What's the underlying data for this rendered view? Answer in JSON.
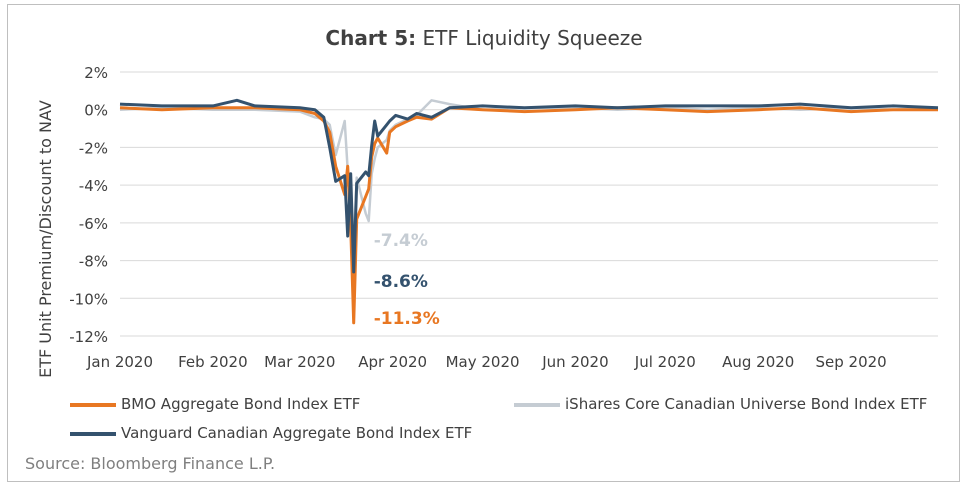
{
  "title": {
    "bold": "Chart 5:",
    "rest": "ETF Liquidity Squeeze"
  },
  "source": "Source: Bloomberg Finance L.P.",
  "colors": {
    "bmo": "#e87722",
    "ishares": "#c5ccd3",
    "vanguard": "#34526e",
    "grid": "#d9d9d9",
    "axis_text": "#404040"
  },
  "chart_data": {
    "type": "line",
    "title": "Chart 5: ETF Liquidity Squeeze",
    "ylabel": "ETF Unit Premium/Discount to NAV",
    "xlabel": "",
    "ylim": [
      -12,
      2
    ],
    "yticks": [
      "2%",
      "0%",
      "-2%",
      "-4%",
      "-6%",
      "-8%",
      "-10%",
      "-12%"
    ],
    "ytick_values": [
      2,
      0,
      -2,
      -4,
      -6,
      -8,
      -10,
      -12
    ],
    "xticks": [
      "Jan 2020",
      "Feb 2020",
      "Mar 2020",
      "Apr 2020",
      "May 2020",
      "Jun 2020",
      "Jul 2020",
      "Aug 2020",
      "Sep 2020"
    ],
    "xtick_dates": [
      "2020-01-01",
      "2020-02-01",
      "2020-03-01",
      "2020-04-01",
      "2020-05-01",
      "2020-06-01",
      "2020-07-01",
      "2020-08-01",
      "2020-09-01"
    ],
    "xlim": [
      "2020-01-01",
      "2020-09-30"
    ],
    "grid": true,
    "legend_position": "bottom",
    "series": [
      {
        "name": "BMO Aggregate Bond Index ETF",
        "color": "#e87722",
        "points": [
          [
            "2020-01-01",
            0.1
          ],
          [
            "2020-01-15",
            0.0
          ],
          [
            "2020-02-01",
            0.1
          ],
          [
            "2020-02-15",
            0.1
          ],
          [
            "2020-03-01",
            0.0
          ],
          [
            "2020-03-06",
            -0.2
          ],
          [
            "2020-03-09",
            -0.6
          ],
          [
            "2020-03-11",
            -1.2
          ],
          [
            "2020-03-13",
            -3.0
          ],
          [
            "2020-03-16",
            -4.5
          ],
          [
            "2020-03-17",
            -3.0
          ],
          [
            "2020-03-18",
            -6.2
          ],
          [
            "2020-03-19",
            -11.3
          ],
          [
            "2020-03-20",
            -5.8
          ],
          [
            "2020-03-23",
            -4.6
          ],
          [
            "2020-03-24",
            -4.2
          ],
          [
            "2020-03-25",
            -2.5
          ],
          [
            "2020-03-26",
            -1.8
          ],
          [
            "2020-03-27",
            -1.5
          ],
          [
            "2020-03-30",
            -2.3
          ],
          [
            "2020-03-31",
            -1.2
          ],
          [
            "2020-04-02",
            -0.9
          ],
          [
            "2020-04-06",
            -0.6
          ],
          [
            "2020-04-09",
            -0.4
          ],
          [
            "2020-04-14",
            -0.5
          ],
          [
            "2020-04-20",
            0.1
          ],
          [
            "2020-05-01",
            0.0
          ],
          [
            "2020-05-15",
            -0.1
          ],
          [
            "2020-06-01",
            0.0
          ],
          [
            "2020-06-15",
            0.1
          ],
          [
            "2020-07-01",
            0.0
          ],
          [
            "2020-07-15",
            -0.1
          ],
          [
            "2020-08-01",
            0.0
          ],
          [
            "2020-08-15",
            0.1
          ],
          [
            "2020-09-01",
            -0.1
          ],
          [
            "2020-09-15",
            0.0
          ],
          [
            "2020-09-30",
            0.0
          ]
        ]
      },
      {
        "name": "iShares Core Canadian Universe Bond Index ETF",
        "color": "#c5ccd3",
        "points": [
          [
            "2020-01-01",
            0.0
          ],
          [
            "2020-01-15",
            0.1
          ],
          [
            "2020-02-01",
            0.0
          ],
          [
            "2020-02-15",
            0.0
          ],
          [
            "2020-03-01",
            -0.1
          ],
          [
            "2020-03-06",
            -0.4
          ],
          [
            "2020-03-09",
            -0.5
          ],
          [
            "2020-03-11",
            -0.8
          ],
          [
            "2020-03-13",
            -2.4
          ],
          [
            "2020-03-16",
            -0.6
          ],
          [
            "2020-03-17",
            -3.2
          ],
          [
            "2020-03-18",
            -4.2
          ],
          [
            "2020-03-19",
            -7.4
          ],
          [
            "2020-03-20",
            -3.6
          ],
          [
            "2020-03-23",
            -5.5
          ],
          [
            "2020-03-24",
            -5.9
          ],
          [
            "2020-03-25",
            -3.4
          ],
          [
            "2020-03-26",
            -2.6
          ],
          [
            "2020-03-27",
            -2.0
          ],
          [
            "2020-03-30",
            -1.6
          ],
          [
            "2020-03-31",
            -1.1
          ],
          [
            "2020-04-02",
            -0.8
          ],
          [
            "2020-04-06",
            -0.5
          ],
          [
            "2020-04-09",
            -0.3
          ],
          [
            "2020-04-14",
            0.5
          ],
          [
            "2020-04-20",
            0.3
          ],
          [
            "2020-05-01",
            0.0
          ],
          [
            "2020-05-15",
            0.1
          ],
          [
            "2020-06-01",
            0.1
          ],
          [
            "2020-06-15",
            0.0
          ],
          [
            "2020-07-01",
            0.1
          ],
          [
            "2020-07-15",
            0.0
          ],
          [
            "2020-08-01",
            0.1
          ],
          [
            "2020-08-15",
            0.0
          ],
          [
            "2020-09-01",
            0.1
          ],
          [
            "2020-09-15",
            0.0
          ],
          [
            "2020-09-30",
            0.1
          ]
        ]
      },
      {
        "name": "Vanguard Canadian Aggregate Bond Index ETF",
        "color": "#34526e",
        "points": [
          [
            "2020-01-01",
            0.3
          ],
          [
            "2020-01-15",
            0.2
          ],
          [
            "2020-02-01",
            0.2
          ],
          [
            "2020-02-09",
            0.5
          ],
          [
            "2020-02-15",
            0.2
          ],
          [
            "2020-03-01",
            0.1
          ],
          [
            "2020-03-06",
            0.0
          ],
          [
            "2020-03-09",
            -0.4
          ],
          [
            "2020-03-11",
            -2.0
          ],
          [
            "2020-03-13",
            -3.8
          ],
          [
            "2020-03-16",
            -3.5
          ],
          [
            "2020-03-17",
            -6.7
          ],
          [
            "2020-03-18",
            -3.4
          ],
          [
            "2020-03-19",
            -8.6
          ],
          [
            "2020-03-20",
            -3.9
          ],
          [
            "2020-03-23",
            -3.3
          ],
          [
            "2020-03-24",
            -3.5
          ],
          [
            "2020-03-25",
            -1.9
          ],
          [
            "2020-03-26",
            -0.6
          ],
          [
            "2020-03-27",
            -1.4
          ],
          [
            "2020-03-30",
            -0.8
          ],
          [
            "2020-03-31",
            -0.6
          ],
          [
            "2020-04-02",
            -0.3
          ],
          [
            "2020-04-06",
            -0.5
          ],
          [
            "2020-04-09",
            -0.2
          ],
          [
            "2020-04-14",
            -0.4
          ],
          [
            "2020-04-20",
            0.1
          ],
          [
            "2020-05-01",
            0.2
          ],
          [
            "2020-05-15",
            0.1
          ],
          [
            "2020-06-01",
            0.2
          ],
          [
            "2020-06-15",
            0.1
          ],
          [
            "2020-07-01",
            0.2
          ],
          [
            "2020-07-15",
            0.2
          ],
          [
            "2020-08-01",
            0.2
          ],
          [
            "2020-08-15",
            0.3
          ],
          [
            "2020-09-01",
            0.1
          ],
          [
            "2020-09-15",
            0.2
          ],
          [
            "2020-09-30",
            0.1
          ]
        ]
      }
    ],
    "annotations": [
      {
        "text": "-7.4%",
        "series": "iShares Core Canadian Universe Bond Index ETF",
        "x": "2020-03-19",
        "y": -7.4
      },
      {
        "text": "-8.6%",
        "series": "Vanguard Canadian Aggregate Bond Index ETF",
        "x": "2020-03-19",
        "y": -8.6
      },
      {
        "text": "-11.3%",
        "series": "BMO Aggregate Bond Index ETF",
        "x": "2020-03-19",
        "y": -11.3
      }
    ]
  }
}
